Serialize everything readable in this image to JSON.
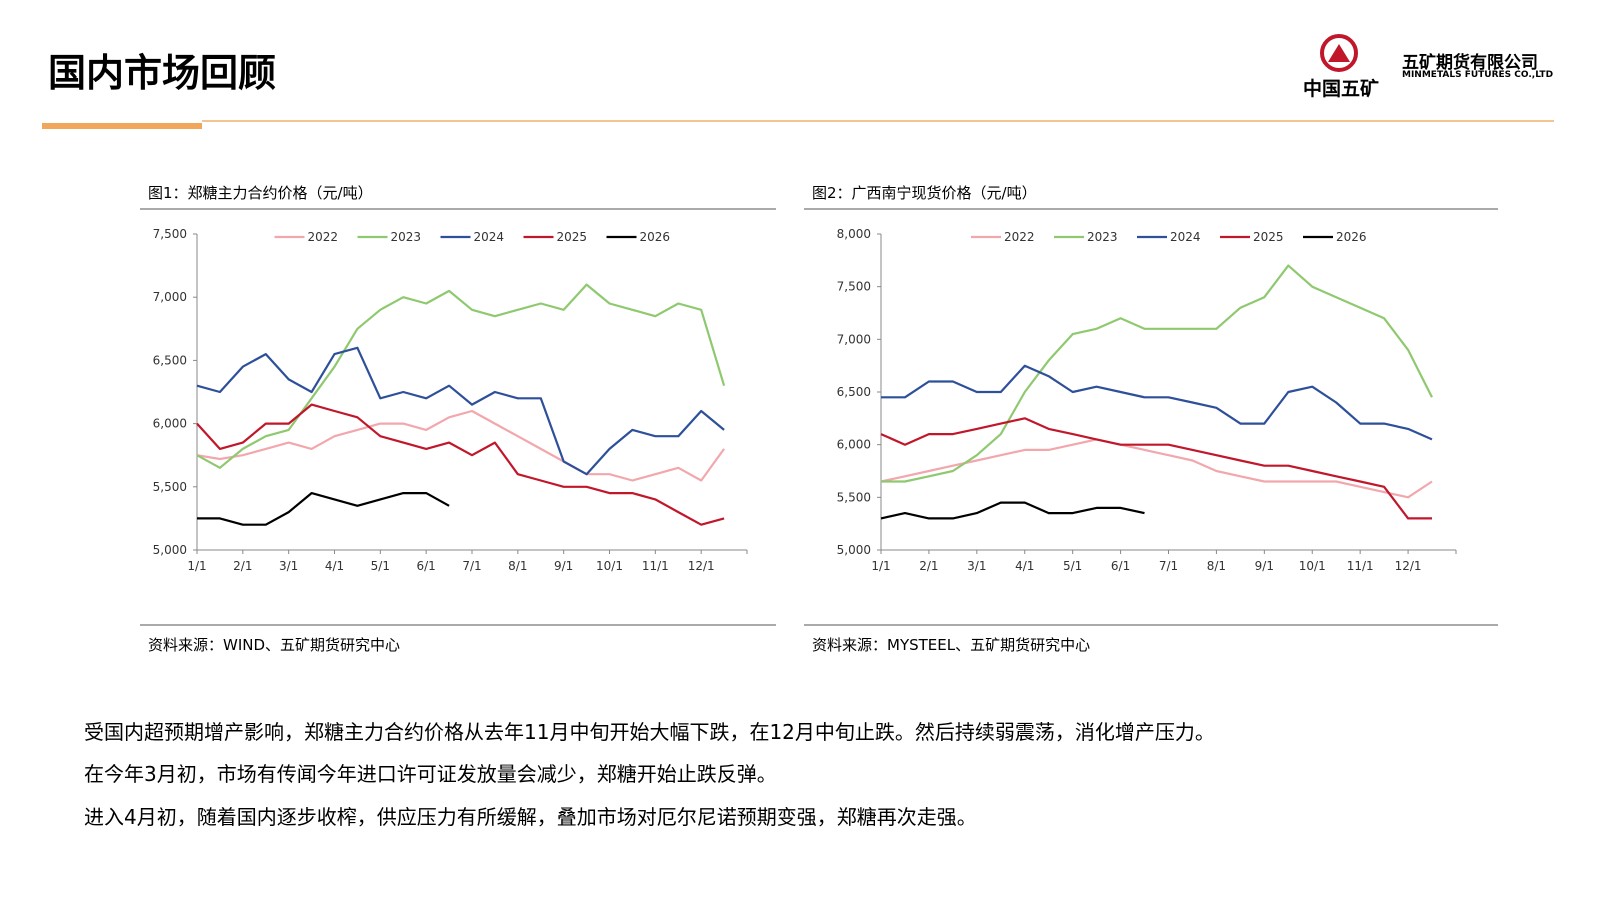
{
  "header": {
    "title": "国内市场回顾",
    "logo_text": "中国五矿",
    "company": "五矿期货有限公司",
    "company_en": "MINMETALS FUTURES CO.,LTD"
  },
  "chart_data": [
    {
      "type": "line",
      "title": "图1：郑糖主力合约价格（元/吨）",
      "source": "资料来源：WIND、五矿期货研究中心",
      "legend": "top",
      "categories": [
        "1/1",
        null,
        "2/1",
        null,
        "3/1",
        null,
        "4/1",
        null,
        "5/1",
        null,
        "6/1",
        null,
        "7/1",
        null,
        "8/1",
        null,
        "9/1",
        null,
        "10/1",
        null,
        "11/1",
        null,
        "12/1",
        null
      ],
      "ylim": [
        5000,
        7500
      ],
      "yticks": [
        {
          "value": 5000,
          "label": "5,000"
        },
        {
          "value": 5500,
          "label": "5,500"
        },
        {
          "value": 6000,
          "label": "6,000"
        },
        {
          "value": 6500,
          "label": "6,500"
        },
        {
          "value": 7000,
          "label": "7,000"
        },
        {
          "value": 7500,
          "label": "7,500"
        }
      ],
      "series": [
        {
          "name": "2022",
          "color": "#f2a7ad",
          "values": [
            5750,
            5720,
            5750,
            5800,
            5850,
            5800,
            5900,
            5950,
            6000,
            6000,
            5950,
            6050,
            6100,
            6000,
            5900,
            5800,
            5700,
            5600,
            5600,
            5550,
            5600,
            5650,
            5550,
            5800
          ]
        },
        {
          "name": "2023",
          "color": "#8fc96f",
          "values": [
            5750,
            5650,
            5800,
            5900,
            5950,
            6200,
            6450,
            6750,
            6900,
            7000,
            6950,
            7050,
            6900,
            6850,
            6900,
            6950,
            6900,
            7100,
            6950,
            6900,
            6850,
            6950,
            6900,
            6300
          ]
        },
        {
          "name": "2024",
          "color": "#2e4f9a",
          "values": [
            6300,
            6250,
            6450,
            6550,
            6350,
            6250,
            6550,
            6600,
            6200,
            6250,
            6200,
            6300,
            6150,
            6250,
            6200,
            6200,
            5700,
            5600,
            5800,
            5950,
            5900,
            5900,
            6100,
            5950
          ]
        },
        {
          "name": "2025",
          "color": "#c0172b",
          "values": [
            6000,
            5800,
            5850,
            6000,
            6000,
            6150,
            6100,
            6050,
            5900,
            5850,
            5800,
            5850,
            5750,
            5850,
            5600,
            5550,
            5500,
            5500,
            5450,
            5450,
            5400,
            5300,
            5200,
            5250
          ]
        },
        {
          "name": "2026",
          "color": "#000000",
          "values": [
            5250,
            5250,
            5200,
            5200,
            5300,
            5450,
            5400,
            5350,
            5400,
            5450,
            5450,
            5350,
            null,
            null,
            null,
            null,
            null,
            null,
            null,
            null,
            null,
            null,
            null,
            null
          ]
        }
      ]
    },
    {
      "type": "line",
      "title": "图2：广西南宁现货价格（元/吨）",
      "source": "资料来源：MYSTEEL、五矿期货研究中心",
      "legend": "top",
      "categories": [
        "1/1",
        null,
        "2/1",
        null,
        "3/1",
        null,
        "4/1",
        null,
        "5/1",
        null,
        "6/1",
        null,
        "7/1",
        null,
        "8/1",
        null,
        "9/1",
        null,
        "10/1",
        null,
        "11/1",
        null,
        "12/1",
        null
      ],
      "ylim": [
        5000,
        8000
      ],
      "yticks": [
        {
          "value": 5000,
          "label": "5,000"
        },
        {
          "value": 5500,
          "label": "5,500"
        },
        {
          "value": 6000,
          "label": "6,000"
        },
        {
          "value": 6500,
          "label": "6,500"
        },
        {
          "value": 7000,
          "label": "7,000"
        },
        {
          "value": 7500,
          "label": "7,500"
        },
        {
          "value": 8000,
          "label": "8,000"
        }
      ],
      "series": [
        {
          "name": "2022",
          "color": "#f2a7ad",
          "values": [
            5650,
            5700,
            5750,
            5800,
            5850,
            5900,
            5950,
            5950,
            6000,
            6050,
            6000,
            5950,
            5900,
            5850,
            5750,
            5700,
            5650,
            5650,
            5650,
            5650,
            5600,
            5550,
            5500,
            5650
          ]
        },
        {
          "name": "2023",
          "color": "#8fc96f",
          "values": [
            5650,
            5650,
            5700,
            5750,
            5900,
            6100,
            6500,
            6800,
            7050,
            7100,
            7200,
            7100,
            7100,
            7100,
            7100,
            7300,
            7400,
            7700,
            7500,
            7400,
            7300,
            7200,
            6900,
            6450
          ]
        },
        {
          "name": "2024",
          "color": "#2e4f9a",
          "values": [
            6450,
            6450,
            6600,
            6600,
            6500,
            6500,
            6750,
            6650,
            6500,
            6550,
            6500,
            6450,
            6450,
            6400,
            6350,
            6200,
            6200,
            6500,
            6550,
            6400,
            6200,
            6200,
            6150,
            6050
          ]
        },
        {
          "name": "2025",
          "color": "#c0172b",
          "values": [
            6100,
            6000,
            6100,
            6100,
            6150,
            6200,
            6250,
            6150,
            6100,
            6050,
            6000,
            6000,
            6000,
            5950,
            5900,
            5850,
            5800,
            5800,
            5750,
            5700,
            5650,
            5600,
            5300,
            5300
          ]
        },
        {
          "name": "2026",
          "color": "#000000",
          "values": [
            5300,
            5350,
            5300,
            5300,
            5350,
            5450,
            5450,
            5350,
            5350,
            5400,
            5400,
            5350,
            null,
            null,
            null,
            null,
            null,
            null,
            null,
            null,
            null,
            null,
            null,
            null
          ]
        }
      ]
    }
  ],
  "paragraphs": [
    "受国内超预期增产影响，郑糖主力合约价格从去年11月中旬开始大幅下跌，在12月中旬止跌。然后持续弱震荡，消化增产压力。",
    "在今年3月初，市场有传闻今年进口许可证发放量会减少，郑糖开始止跌反弹。",
    "进入4月初，随着国内逐步收榨，供应压力有所缓解，叠加市场对厄尔尼诺预期变强，郑糖再次走强。"
  ]
}
